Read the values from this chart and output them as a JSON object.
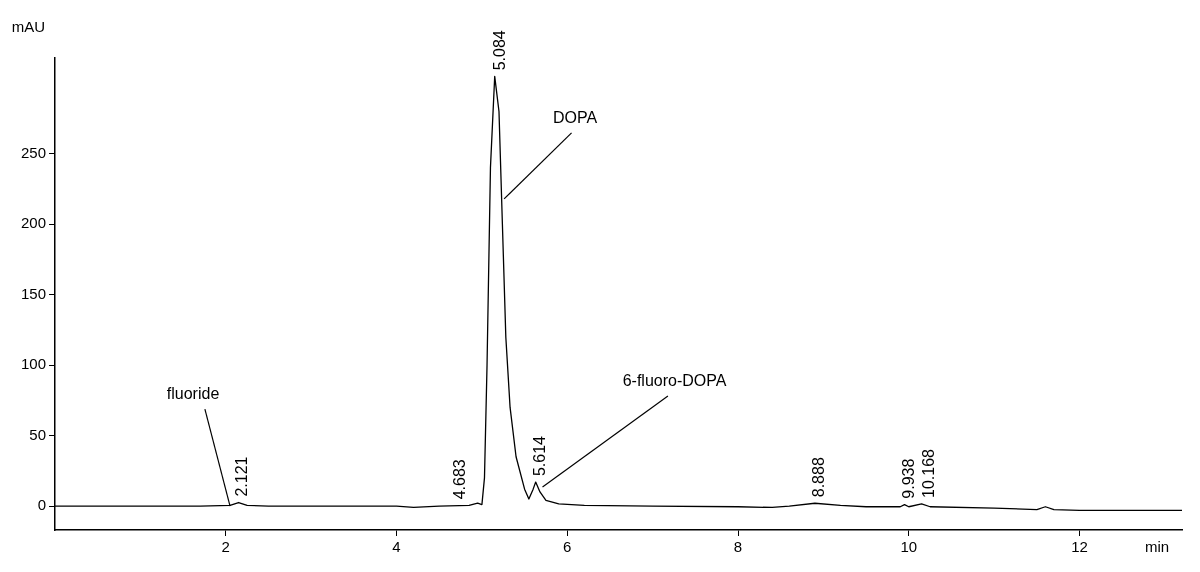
{
  "chart_data": {
    "type": "line",
    "xlabel": "min",
    "ylabel": "mAU",
    "x": [
      0,
      1.7,
      2.05,
      2.15,
      2.25,
      2.5,
      4.0,
      4.2,
      4.5,
      4.85,
      4.95,
      5.0,
      5.03,
      5.06,
      5.1,
      5.15,
      5.2,
      5.24,
      5.28,
      5.33,
      5.4,
      5.5,
      5.55,
      5.6,
      5.63,
      5.68,
      5.75,
      5.9,
      6.2,
      7,
      8,
      8.4,
      8.6,
      8.9,
      9.2,
      9.5,
      9.9,
      9.95,
      10.0,
      10.15,
      10.25,
      11,
      11.5,
      11.6,
      11.7,
      12,
      13.2
    ],
    "series": [
      {
        "color": "#000000",
        "values": [
          0,
          0,
          0.5,
          2.5,
          0.5,
          0,
          0,
          -1,
          0,
          0.5,
          2,
          1,
          20,
          100,
          240,
          305,
          280,
          200,
          120,
          70,
          35,
          12,
          5,
          12,
          17,
          10,
          4,
          1.5,
          0.5,
          0,
          -0.5,
          -1,
          0,
          2,
          0.5,
          -0.5,
          -0.5,
          1,
          -0.5,
          1.5,
          -0.5,
          -1.5,
          -2.5,
          -0.5,
          -2.5,
          -3,
          -3
        ]
      }
    ],
    "xlim": [
      0,
      13.2
    ],
    "xticks": [
      2,
      4,
      6,
      8,
      10,
      12
    ],
    "ylim": [
      -17,
      318
    ],
    "yticks": [
      0,
      50,
      100,
      150,
      200,
      250
    ],
    "grid": false,
    "legend": false,
    "marker": "none",
    "line_style": "solid",
    "annotations": [
      {
        "text": "fluoride",
        "x": 2.05,
        "y": 0
      },
      {
        "text": "DOPA",
        "x": 5.26,
        "y": 218
      },
      {
        "text": "6-fluoro-DOPA",
        "x": 5.71,
        "y": 13.5
      },
      {
        "text": "2.121",
        "x": 2.121,
        "y": 2.5
      },
      {
        "text": "4.683",
        "x": 4.683,
        "y": 0.5
      },
      {
        "text": "5.084",
        "x": 5.15,
        "y": 305
      },
      {
        "text": "5.614",
        "x": 5.614,
        "y": 17
      },
      {
        "text": "8.888",
        "x": 8.888,
        "y": 2
      },
      {
        "text": "9.938",
        "x": 9.938,
        "y": 1
      },
      {
        "text": "10.168",
        "x": 10.168,
        "y": 1.5
      }
    ]
  }
}
